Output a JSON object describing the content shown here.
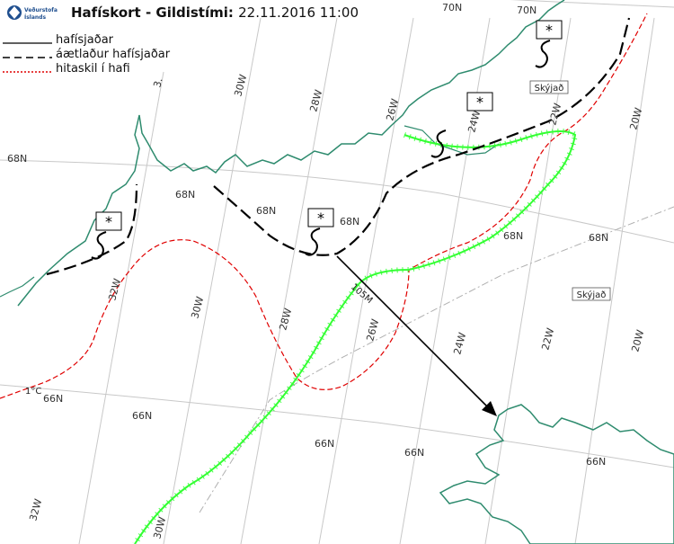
{
  "header": {
    "title": "Hafískort - Gildistími:",
    "datetime": "22.11.2016 11:00"
  },
  "logo": {
    "line1": "Veðurstofa",
    "line2": "Íslands"
  },
  "legend": {
    "items": [
      {
        "label": "hafísjaðar",
        "style": "solid",
        "color": "#000000"
      },
      {
        "label": "áætlaður hafísjaðar",
        "style": "dashed",
        "color": "#000000"
      },
      {
        "label": "hitaskil í hafi",
        "style": "dotted",
        "color": "#e00000"
      }
    ]
  },
  "grid": {
    "lat_labels": [
      "70N",
      "70N",
      "68N",
      "68N",
      "68N",
      "68N",
      "68N",
      "68N",
      "66N",
      "66N",
      "66N",
      "66N",
      "66N"
    ],
    "lon_labels": [
      "30W",
      "28W",
      "26W",
      "24W",
      "22W",
      "20W",
      "32W",
      "30W",
      "28W",
      "26W",
      "24W",
      "22W",
      "20W",
      "32W",
      "30W"
    ],
    "cut_label": "3."
  },
  "annotations": {
    "skyjad_1": "Skýjað",
    "skyjad_2": "Skýjað",
    "distance": "105M",
    "temp": "1°C",
    "ice_symbol": "*"
  },
  "colors": {
    "coast": "#2e8b6e",
    "ice_edge": "#33ff33",
    "front": "#e00000",
    "estimated_edge": "#000000",
    "grid": "#c8c8c8"
  }
}
